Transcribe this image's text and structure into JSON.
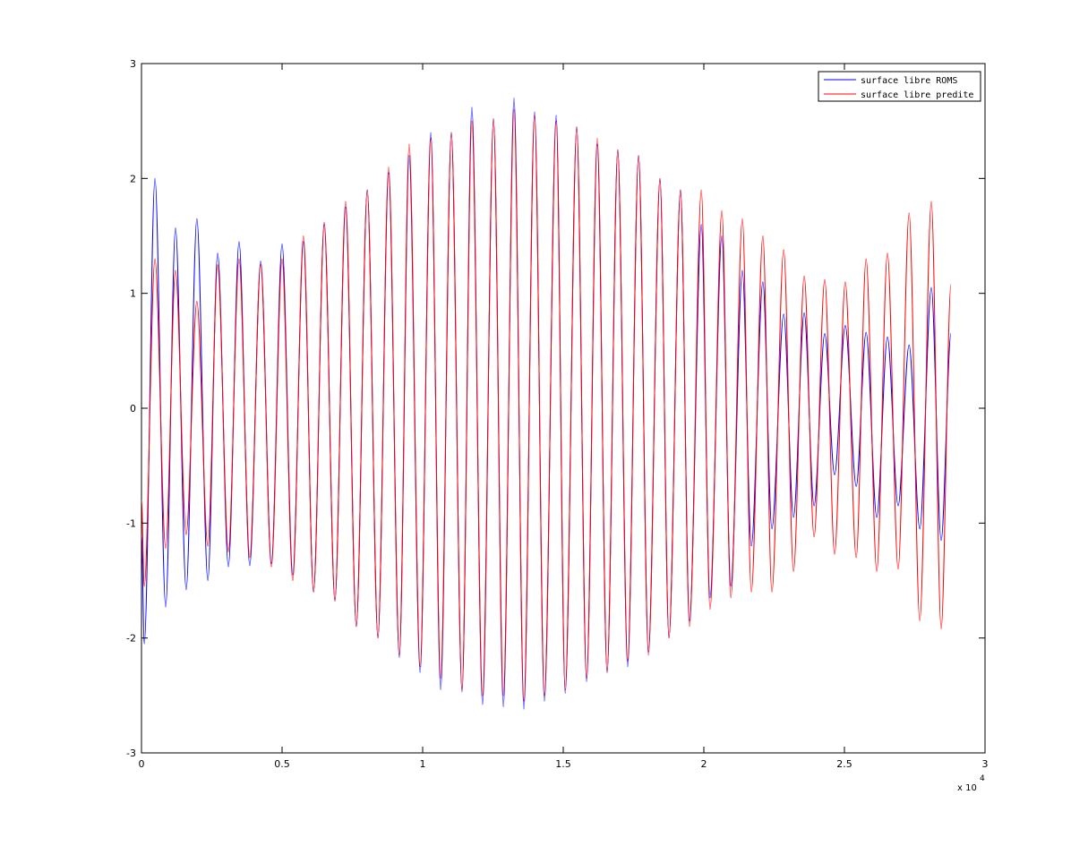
{
  "chart_data": {
    "type": "line",
    "xlim": [
      0,
      30000
    ],
    "xticks": [
      0,
      {
        "value": 5000,
        "label": "0.5"
      },
      {
        "value": 10000,
        "label": "1"
      },
      {
        "value": 15000,
        "label": "1.5"
      },
      {
        "value": 20000,
        "label": "2"
      },
      {
        "value": 25000,
        "label": "2.5"
      },
      {
        "value": 30000,
        "label": "3"
      }
    ],
    "x_multiplier": {
      "base": "x 10",
      "exponent": "4"
    },
    "ylim": [
      -3,
      3
    ],
    "yticks": [
      -3,
      -2,
      -1,
      0,
      1,
      2,
      3
    ],
    "grid": false,
    "legend": "upper-right",
    "x": [
      0,
      100,
      480,
      860,
      1210,
      1590,
      1970,
      2360,
      2710,
      3090,
      3470,
      3850,
      4240,
      4620,
      5000,
      5380,
      5760,
      6120,
      6500,
      6880,
      7260,
      7640,
      8030,
      8410,
      8790,
      9170,
      9520,
      9910,
      10290,
      10640,
      11020,
      11400,
      11750,
      12130,
      12520,
      12870,
      13250,
      13600,
      13980,
      14330,
      14750,
      15070,
      15480,
      15830,
      16210,
      16560,
      16940,
      17290,
      17680,
      18030,
      18440,
      18760,
      19170,
      19490,
      19910,
      20220,
      20640,
      20960,
      21370,
      21690,
      22100,
      22420,
      22840,
      23190,
      23570,
      23920,
      24300,
      24650,
      25030,
      25420,
      25770,
      26150,
      26530,
      26910,
      27300,
      27680,
      28090,
      28440,
      28790
    ],
    "series": [
      {
        "name": "surface libre ROMS",
        "color": "#0000ff",
        "values": [
          -1.1,
          -2.05,
          2.0,
          -1.73,
          1.57,
          -1.58,
          1.65,
          -1.5,
          1.35,
          -1.38,
          1.45,
          -1.37,
          1.28,
          -1.35,
          1.43,
          -1.45,
          1.45,
          -1.6,
          1.6,
          -1.67,
          1.75,
          -1.9,
          1.9,
          -2.0,
          2.05,
          -2.17,
          2.2,
          -2.3,
          2.4,
          -2.45,
          2.4,
          -2.47,
          2.62,
          -2.58,
          2.52,
          -2.6,
          2.7,
          -2.62,
          2.58,
          -2.55,
          2.55,
          -2.48,
          2.45,
          -2.38,
          2.3,
          -2.3,
          2.25,
          -2.25,
          2.2,
          -2.12,
          2.0,
          -2.0,
          1.9,
          -1.85,
          1.6,
          -1.65,
          1.5,
          -1.55,
          1.2,
          -1.2,
          1.1,
          -1.05,
          0.82,
          -0.95,
          0.83,
          -0.85,
          0.65,
          -0.58,
          0.72,
          -0.68,
          0.66,
          -0.95,
          0.62,
          -0.85,
          0.55,
          -1.05,
          1.05,
          -1.15,
          0.65
        ]
      },
      {
        "name": "surface libre predite",
        "color": "#ff0000",
        "values": [
          -0.8,
          -1.55,
          1.3,
          -1.22,
          1.2,
          -1.1,
          0.93,
          -1.2,
          1.25,
          -1.25,
          1.3,
          -1.3,
          1.25,
          -1.38,
          1.3,
          -1.5,
          1.5,
          -1.6,
          1.62,
          -1.68,
          1.8,
          -1.9,
          1.9,
          -2.0,
          2.1,
          -2.15,
          2.3,
          -2.25,
          2.35,
          -2.35,
          2.4,
          -2.45,
          2.5,
          -2.5,
          2.52,
          -2.5,
          2.6,
          -2.55,
          2.55,
          -2.5,
          2.5,
          -2.45,
          2.45,
          -2.35,
          2.35,
          -2.3,
          2.25,
          -2.2,
          2.2,
          -2.15,
          2.0,
          -2.0,
          1.9,
          -1.9,
          1.9,
          -1.75,
          1.72,
          -1.65,
          1.65,
          -1.6,
          1.5,
          -1.6,
          1.38,
          -1.42,
          1.15,
          -1.12,
          1.12,
          -1.27,
          1.1,
          -1.3,
          1.3,
          -1.42,
          1.35,
          -1.4,
          1.7,
          -1.85,
          1.8,
          -1.92,
          1.08
        ]
      }
    ]
  }
}
